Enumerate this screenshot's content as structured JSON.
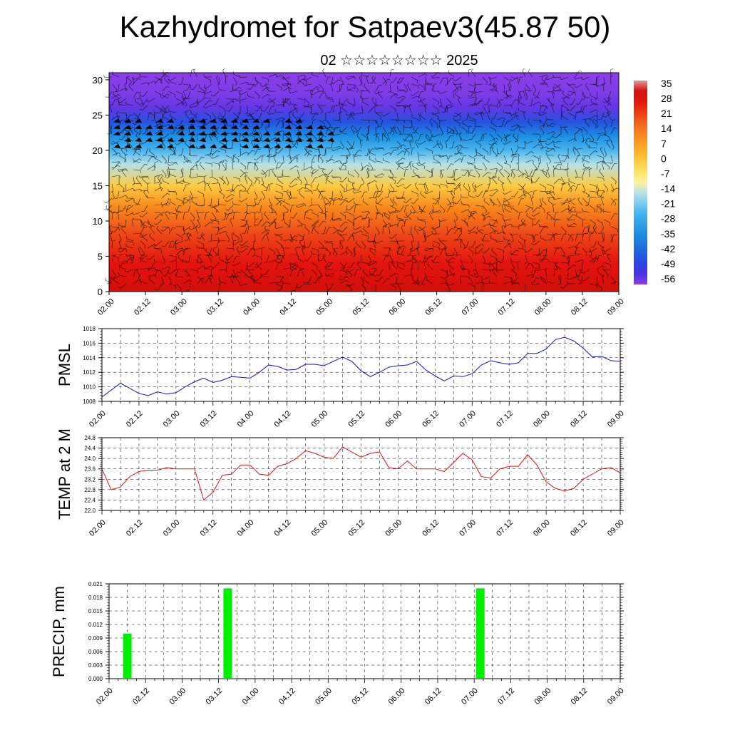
{
  "title": "Kazhydromet for Satpaev3(45.87 50)",
  "subtitle": "02 ☆☆☆☆☆☆☆☆ 2025",
  "chart_data": [
    {
      "type": "heatmap",
      "title": "",
      "xlabel": "",
      "ylabel": "",
      "x_ticks": [
        "02.00",
        "02.12",
        "03.00",
        "03.12",
        "04.00",
        "04.12",
        "05.00",
        "05.12",
        "06.00",
        "06.12",
        "07.00",
        "07.12",
        "08.00",
        "08.12",
        "09.00"
      ],
      "y_ticks": [
        0,
        5,
        10,
        15,
        20,
        25,
        30
      ],
      "ylim": [
        0,
        31
      ],
      "colorbar_labels": [
        35,
        28,
        21,
        14,
        7,
        0,
        -7,
        -14,
        -21,
        -28,
        -35,
        -42,
        -49,
        -56
      ],
      "vertical_profile": {
        "levels": [
          0,
          4,
          8,
          12,
          15,
          18,
          20,
          22,
          24,
          26,
          28,
          31
        ],
        "values": [
          33,
          28,
          22,
          12,
          0,
          -15,
          -24,
          -34,
          -46,
          -55,
          -57,
          -58
        ]
      },
      "wind_barbs": true,
      "colors": {
        "warm_red": "#e4140f",
        "orange": "#fb9a1e",
        "yellow": "#fdf0a0",
        "light_blue": "#a9def5",
        "blue": "#1d8fe2",
        "deep_blue": "#2b2fd8",
        "purple": "#8b3ee8"
      }
    },
    {
      "type": "line",
      "ylabel": "PMSL",
      "ylim": [
        1008,
        1018
      ],
      "yticks": [
        1008,
        1010,
        1012,
        1014,
        1016,
        1018
      ],
      "x_ticks": [
        "02.00",
        "02.12",
        "03.00",
        "03.12",
        "04.00",
        "04.12",
        "05.00",
        "05.12",
        "06.00",
        "06.12",
        "07.00",
        "07.12",
        "08.00",
        "08.12",
        "09.00"
      ],
      "x_range": [
        0,
        168
      ],
      "series": [
        {
          "color": "#1010d0",
          "x": [
            0,
            6,
            9,
            12,
            15,
            18,
            21,
            24,
            27,
            30,
            33,
            36,
            39,
            42,
            45,
            48,
            51,
            54,
            57,
            60,
            63,
            66,
            69,
            72,
            75,
            78,
            81,
            84,
            87,
            90,
            93,
            96,
            99,
            102,
            105,
            108,
            111,
            114,
            117,
            120,
            123,
            126,
            129,
            132,
            135,
            138,
            141,
            144,
            147,
            150,
            153,
            156,
            159,
            162,
            165,
            168
          ],
          "values": [
            1008.6,
            1010.5,
            1009.8,
            1009.1,
            1008.8,
            1009.3,
            1009.0,
            1009.2,
            1010.0,
            1010.7,
            1011.2,
            1010.6,
            1010.9,
            1011.4,
            1011.3,
            1011.2,
            1012.0,
            1013.0,
            1012.8,
            1012.3,
            1012.4,
            1013.1,
            1013.1,
            1012.9,
            1013.5,
            1014.1,
            1013.5,
            1012.2,
            1011.4,
            1012.0,
            1012.7,
            1012.9,
            1013.0,
            1013.5,
            1012.3,
            1011.5,
            1010.8,
            1011.5,
            1011.4,
            1011.8,
            1013.0,
            1013.6,
            1013.3,
            1013.1,
            1013.3,
            1014.6,
            1014.6,
            1015.2,
            1016.5,
            1016.8,
            1016.3,
            1015.3,
            1014.1,
            1014.2,
            1013.6,
            1013.5
          ]
        }
      ]
    },
    {
      "type": "line",
      "ylabel": "TEMP at 2 M",
      "ylim": [
        22.0,
        24.8
      ],
      "yticks": [
        "22.0",
        "22.4",
        "22.8",
        "23.2",
        "23.6",
        "24.0",
        "24.4",
        "24.8"
      ],
      "x_ticks": [
        "02.00",
        "02.12",
        "03.00",
        "03.12",
        "04.00",
        "04.12",
        "05.00",
        "05.12",
        "06.00",
        "06.12",
        "07.00",
        "07.12",
        "08.00",
        "08.12",
        "09.00"
      ],
      "x_range": [
        0,
        168
      ],
      "series": [
        {
          "color": "#e01010",
          "x": [
            0,
            3,
            6,
            9,
            12,
            15,
            18,
            21,
            24,
            27,
            30,
            33,
            36,
            39,
            42,
            45,
            48,
            51,
            54,
            57,
            60,
            63,
            66,
            69,
            72,
            75,
            78,
            81,
            84,
            87,
            90,
            93,
            96,
            99,
            102,
            105,
            108,
            111,
            114,
            117,
            120,
            123,
            126,
            129,
            132,
            135,
            138,
            141,
            144,
            147,
            150,
            153,
            156,
            159,
            162,
            165,
            168
          ],
          "values": [
            23.6,
            22.8,
            22.9,
            23.3,
            23.5,
            23.55,
            23.55,
            23.65,
            23.6,
            23.6,
            23.6,
            22.4,
            22.7,
            23.35,
            23.4,
            23.75,
            23.75,
            23.4,
            23.35,
            23.7,
            23.8,
            24.0,
            24.3,
            24.2,
            24.05,
            24.0,
            24.45,
            24.25,
            24.05,
            24.2,
            24.25,
            23.65,
            23.6,
            23.9,
            23.6,
            23.6,
            23.6,
            23.5,
            23.85,
            24.2,
            23.95,
            23.3,
            23.25,
            23.6,
            23.7,
            23.7,
            24.15,
            23.75,
            23.1,
            22.85,
            22.75,
            22.85,
            23.2,
            23.4,
            23.6,
            23.65,
            23.45
          ]
        }
      ]
    },
    {
      "type": "bar",
      "ylabel": "PRECIP, mm",
      "ylim": [
        0,
        0.021
      ],
      "yticks": [
        "0.000",
        "0.003",
        "0.006",
        "0.009",
        "0.012",
        "0.015",
        "0.018",
        "0.021"
      ],
      "x_ticks": [
        "02.00",
        "02.12",
        "03.00",
        "03.12",
        "04.00",
        "04.12",
        "05.00",
        "05.12",
        "06.00",
        "06.12",
        "07.00",
        "07.12",
        "08.00",
        "08.12",
        "09.00"
      ],
      "x_range": [
        0,
        168
      ],
      "bars": [
        {
          "x": 6,
          "value": 0.01
        },
        {
          "x": 39,
          "value": 0.02
        },
        {
          "x": 122,
          "value": 0.02
        }
      ],
      "bar_color": "#00ee00"
    }
  ]
}
